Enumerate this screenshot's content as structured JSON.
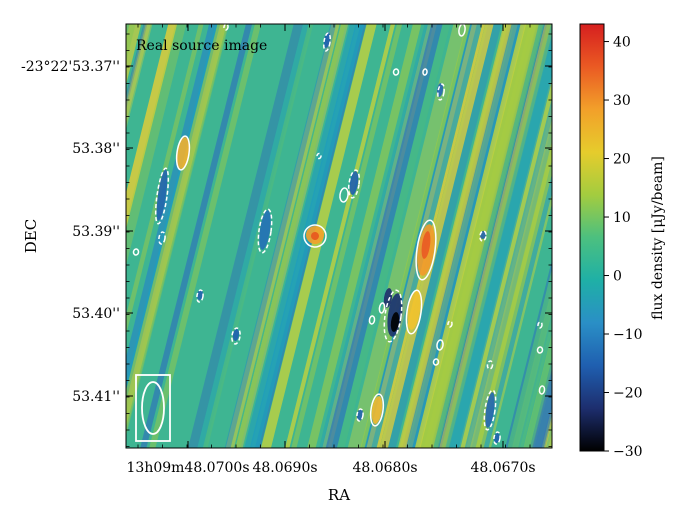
{
  "chart_data": {
    "type": "heatmap",
    "title": "",
    "panel_label": "Real source image",
    "xlabel": "RA",
    "ylabel": "DEC",
    "x_ticks": [
      "13h09m48.0700s",
      "48.0690s",
      "48.0680s",
      "48.0670s"
    ],
    "y_ticks": [
      "-23°22'53.37''",
      "53.38''",
      "53.39''",
      "53.40''",
      "53.41''"
    ],
    "colorbar": {
      "label": "flux density [μJy/beam]",
      "range": [
        -30,
        43
      ],
      "ticks": [
        "40",
        "30",
        "20",
        "10",
        "0",
        "−10",
        "−20",
        "−30"
      ],
      "tick_values": [
        40,
        30,
        20,
        10,
        0,
        -10,
        -20,
        -30
      ],
      "colormap": [
        "#000000",
        "#1d2e6e",
        "#1f5fb0",
        "#2a8fc6",
        "#1fb0a6",
        "#4cc07f",
        "#a3cc3f",
        "#e6cc2c",
        "#f2a02a",
        "#ea5a23",
        "#d61f1f"
      ]
    },
    "contours": {
      "positive_style": "solid white",
      "negative_style": "dashed white"
    },
    "beam_ellipse": true,
    "grid": false
  }
}
